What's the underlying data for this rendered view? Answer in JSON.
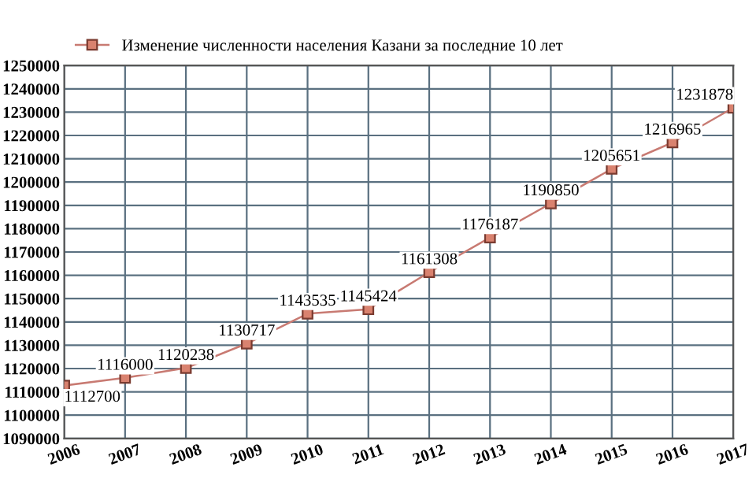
{
  "chart_data": {
    "type": "line",
    "categories": [
      "2006",
      "2007",
      "2008",
      "2009",
      "2010",
      "2011",
      "2012",
      "2013",
      "2014",
      "2015",
      "2016",
      "2017"
    ],
    "series": [
      {
        "name": "Изменение численности населения Казани за последние 10 лет",
        "color": "#c87a72",
        "values": [
          1112700,
          1116000,
          1120238,
          1130717,
          1143535,
          1145424,
          1161308,
          1176187,
          1190850,
          1205651,
          1216965,
          1231878
        ]
      }
    ],
    "ylim": [
      1090000,
      1250000
    ],
    "yticks": [
      1090000,
      1100000,
      1110000,
      1120000,
      1130000,
      1140000,
      1150000,
      1160000,
      1170000,
      1180000,
      1190000,
      1200000,
      1210000,
      1220000,
      1230000,
      1240000,
      1250000
    ],
    "grid": true,
    "legend": "top",
    "marker": "square",
    "line_style": "solid",
    "data_labels": true
  }
}
